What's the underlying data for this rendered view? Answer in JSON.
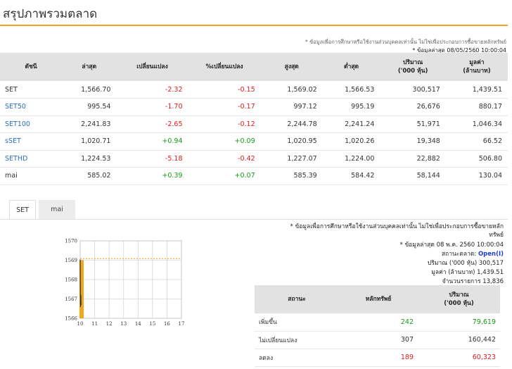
{
  "page": {
    "title": "สรุปภาพรวมตลาด",
    "note": "* ข้อมูลเพื่อการศึกษาหรือใช้งานส่วนบุคคลเท่านั้น ไม่ใช่เพื่อประกอบการซื้อขายหลักทรัพย์",
    "last_update": "* ข้อมูลล่าสุด 08/05/2560 10:00:04"
  },
  "index_table": {
    "headers": [
      "ดัชนี",
      "ล่าสุด",
      "เปลี่ยนแปลง",
      "%เปลี่ยนแปลง",
      "สูงสุด",
      "ต่ำสุด",
      "ปริมาณ ('000 หุ้น)",
      "มูลค่า (ล้านบาท)"
    ],
    "header_lines": {
      "volume": [
        "ปริมาณ",
        "('000 หุ้น)"
      ],
      "value": [
        "มูลค่า",
        "(ล้านบาท)"
      ]
    },
    "rows": [
      {
        "name": "SET",
        "last": "1,566.70",
        "change": "-2.32",
        "pct": "-0.15",
        "high": "1,569.02",
        "low": "1,566.53",
        "volume": "300,517",
        "value": "1,439.51"
      },
      {
        "name": "SET50",
        "last": "995.54",
        "change": "-1.70",
        "pct": "-0.17",
        "high": "997.12",
        "low": "995.19",
        "volume": "26,676",
        "value": "880.17"
      },
      {
        "name": "SET100",
        "last": "2,241.83",
        "change": "-2.65",
        "pct": "-0.12",
        "high": "2,244.78",
        "low": "2,241.24",
        "volume": "51,971",
        "value": "1,046.34"
      },
      {
        "name": "sSET",
        "last": "1,020.71",
        "change": "+0.94",
        "pct": "+0.09",
        "high": "1,020.95",
        "low": "1,020.26",
        "volume": "19,348",
        "value": "66.52"
      },
      {
        "name": "SETHD",
        "last": "1,224.53",
        "change": "-5.18",
        "pct": "-0.42",
        "high": "1,227.07",
        "low": "1,224.00",
        "volume": "22,882",
        "value": "506.80"
      },
      {
        "name": "mai",
        "last": "585.02",
        "change": "+0.39",
        "pct": "+0.07",
        "high": "585.39",
        "low": "584.42",
        "volume": "58,144",
        "value": "130.04"
      }
    ]
  },
  "tabs": [
    "SET",
    "mai"
  ],
  "market_info": {
    "note_line1": "* ข้อมูลเพื่อการศึกษาหรือใช้งานส่วนบุคคลเท่านั้น ไม่ใช่เพื่อประกอบการซื้อขายหลัก",
    "note_line2": "ทรัพย์",
    "last_update": "* ข้อมูลล่าสุด 08 พ.ค. 2560 10:00:04",
    "status_label": "สถานะตลาด:",
    "status_value": "Open(I)",
    "volume_label": "ปริมาณ ('000 หุ้น)",
    "volume_value": "300,517",
    "value_label": "มูลค่า (ล้านบาท)",
    "value_value": "1,439.51",
    "deals_label": "จำนวนรายการ",
    "deals_value": "13,836"
  },
  "breadth_table": {
    "headers": [
      "สถานะ",
      "หลักทรัพย์",
      "ปริมาณ ('000 หุ้น)"
    ],
    "volume_header_lines": [
      "ปริมาณ",
      "('000 หุ้น)"
    ],
    "rows": [
      {
        "name": "เพิ่มขึ้น",
        "count": "242",
        "volume": "79,619",
        "color": "#169c16"
      },
      {
        "name": "ไม่เปลี่ยนแปลง",
        "count": "307",
        "volume": "160,442",
        "color": "#333333"
      },
      {
        "name": "ลดลง",
        "count": "189",
        "volume": "60,323",
        "color": "#e01b1b"
      }
    ]
  },
  "chart_data": {
    "type": "line",
    "x_ticks": [
      "10",
      "11",
      "12",
      "13",
      "14",
      "15",
      "16",
      "17"
    ],
    "y_ticks": [
      "1566",
      "1567",
      "1568",
      "1569",
      "1570"
    ],
    "ylim": [
      1566,
      1570
    ],
    "xlim": [
      10,
      17
    ],
    "reference_line": 1569,
    "series": [
      {
        "x": [
          10.0,
          10.02,
          10.04,
          10.06
        ],
        "y": [
          1569.02,
          1566.6,
          1567.2,
          1566.7
        ]
      }
    ],
    "volume_bar": {
      "x": 10.0,
      "from": 1566,
      "to": 1569
    },
    "colors": {
      "line": "#333333",
      "bar": "#f2a71b",
      "reference": "#f2a71b",
      "grid": "#d5d5d5"
    }
  },
  "colors": {
    "accent": "#f3a21b",
    "up": "#169c16",
    "down": "#e01b1b",
    "link": "#2a6ebb"
  }
}
